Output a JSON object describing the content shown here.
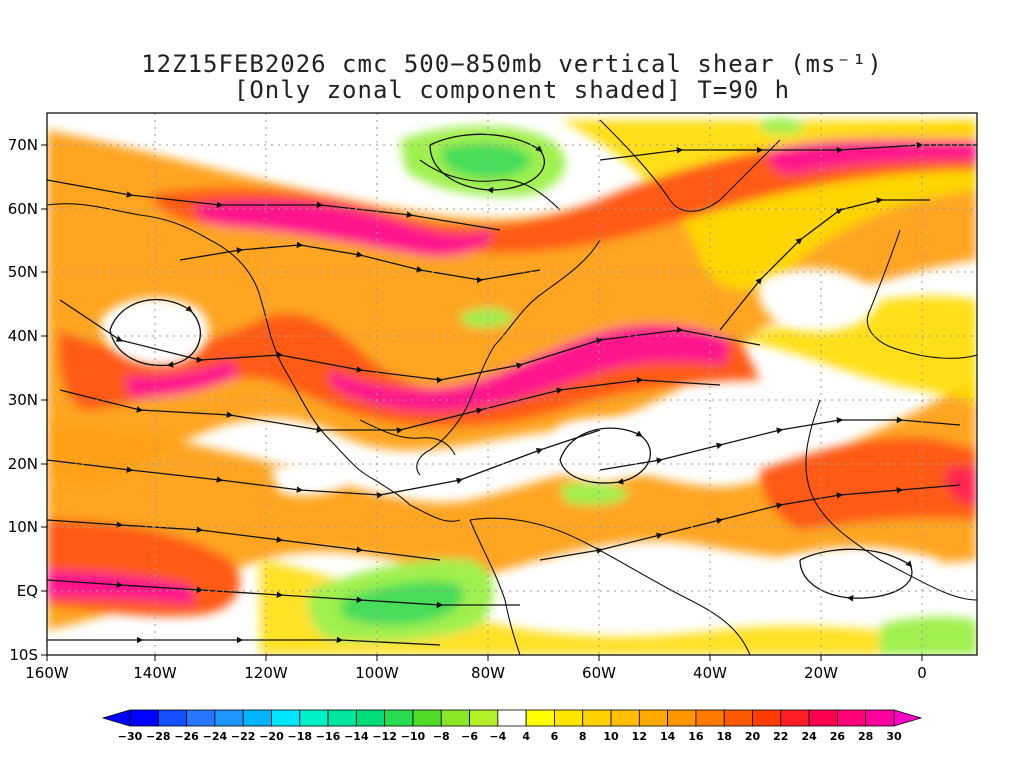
{
  "title_line1": "12Z15FEB2026 cmc 500−850mb vertical shear (ms⁻¹)",
  "title_line2": "[Only zonal component shaded] T=90 h",
  "lat_labels": [
    "70N",
    "60N",
    "50N",
    "40N",
    "30N",
    "20N",
    "10N",
    "EQ",
    "10S"
  ],
  "lon_labels": [
    "160W",
    "140W",
    "120W",
    "100W",
    "80W",
    "60W",
    "40W",
    "20W",
    "0"
  ],
  "colorbar": {
    "labels": [
      "-30",
      "-28",
      "-26",
      "-24",
      "-22",
      "-20",
      "-18",
      "-16",
      "-14",
      "-12",
      "-10",
      "-8",
      "-6",
      "-4",
      "4",
      "6",
      "8",
      "10",
      "12",
      "14",
      "16",
      "18",
      "20",
      "22",
      "24",
      "26",
      "28",
      "30"
    ],
    "colors": [
      "#0000ff",
      "#1450ff",
      "#2878ff",
      "#1e96ff",
      "#00b4ff",
      "#00e6ff",
      "#00f0c8",
      "#00e6a0",
      "#00dc78",
      "#28dc50",
      "#50dc28",
      "#8ce628",
      "#b4f028",
      "#ffffff",
      "#ffff00",
      "#ffe600",
      "#ffd200",
      "#ffbe00",
      "#ffaa00",
      "#ff9600",
      "#ff7800",
      "#ff5a00",
      "#ff3c00",
      "#ff1e28",
      "#ff0050",
      "#ff0078",
      "#ff00a0"
    ],
    "low_color": "#0000ff",
    "high_color": "#ff00c8"
  },
  "field_colors": {
    "jet_core": "#ff148c",
    "strong": "#ff5a14",
    "moderate": "#ffa014",
    "weak": "#ffdc00",
    "very_weak": "#ffff3c",
    "easterly_weak": "#a0f050",
    "easterly_mod": "#46dc5a",
    "easterly_strong": "#28d28c"
  }
}
